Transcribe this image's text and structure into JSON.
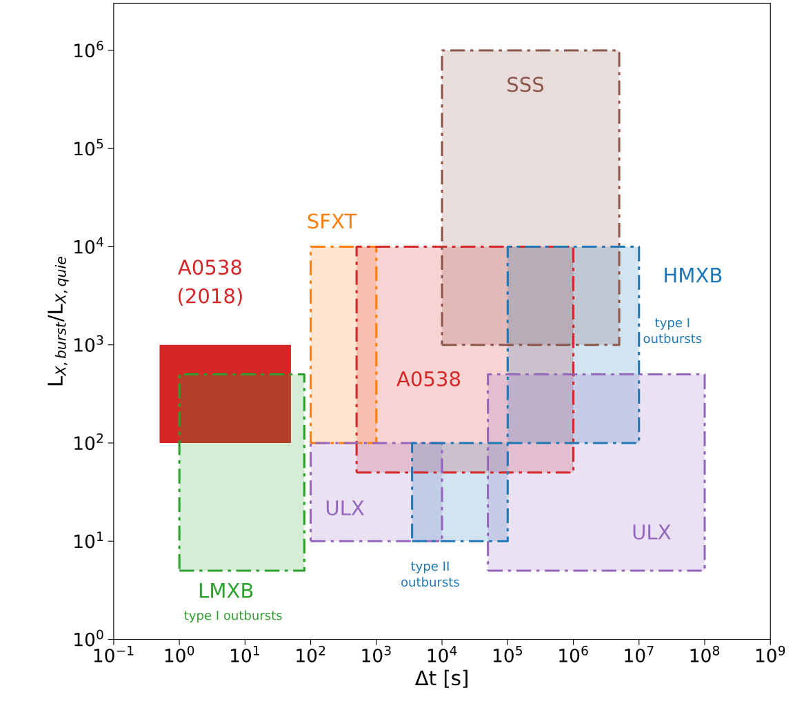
{
  "chart_data": {
    "type": "area",
    "xlabel": "Δt [s]",
    "ylabel": "L$_{X,burst}$/L$_{X,quie}$",
    "log": "xy",
    "grid": false,
    "legend": false,
    "xlim": [
      0.1,
      1000000000
    ],
    "ylim": [
      1,
      3000000
    ],
    "xticks": [
      {
        "value": 0.1,
        "label": "10$^{−1}$"
      },
      {
        "value": 1,
        "label": "10$^{0}$"
      },
      {
        "value": 10,
        "label": "10$^{1}$"
      },
      {
        "value": 100,
        "label": "10$^{2}$"
      },
      {
        "value": 1000,
        "label": "10$^{3}$"
      },
      {
        "value": 10000,
        "label": "10$^{4}$"
      },
      {
        "value": 100000,
        "label": "10$^{5}$"
      },
      {
        "value": 1000000,
        "label": "10$^{6}$"
      },
      {
        "value": 10000000,
        "label": "10$^{7}$"
      },
      {
        "value": 100000000,
        "label": "10$^{8}$"
      },
      {
        "value": 1000000000,
        "label": "10$^{9}$"
      }
    ],
    "yticks": [
      {
        "value": 1,
        "label": "10$^{0}$"
      },
      {
        "value": 10,
        "label": "10$^{1}$"
      },
      {
        "value": 100,
        "label": "10$^{2}$"
      },
      {
        "value": 1000,
        "label": "10$^{3}$"
      },
      {
        "value": 10000,
        "label": "10$^{4}$"
      },
      {
        "value": 100000,
        "label": "10$^{5}$"
      },
      {
        "value": 1000000,
        "label": "10$^{6}$"
      }
    ],
    "series": [
      {
        "name": "A0538\n(2018)",
        "color": "#d62728",
        "line_style": "solid",
        "x": [
          0.5,
          50,
          50,
          0.5,
          0.5
        ],
        "values": [
          100,
          100,
          1000,
          1000,
          100
        ]
      },
      {
        "name": "LMXB",
        "color": "#2ca02c",
        "line_style": "dashed",
        "x": [
          1,
          80,
          80,
          1,
          1
        ],
        "values": [
          5,
          5,
          500,
          500,
          5
        ]
      },
      {
        "name": "SFXT",
        "color": "#ff7f0e",
        "line_style": "dashed",
        "x": [
          100,
          1000,
          1000,
          100,
          100
        ],
        "values": [
          100,
          100,
          10000,
          10000,
          100
        ]
      },
      {
        "name": "A0538",
        "color": "#d62728",
        "line_style": "dashed",
        "x": [
          500,
          1000000,
          1000000,
          500,
          500
        ],
        "values": [
          50,
          50,
          10000,
          10000,
          50
        ]
      },
      {
        "name": "SSS",
        "color": "#8c564b",
        "line_style": "dashed",
        "x": [
          10000,
          5000000,
          5000000,
          10000,
          10000
        ],
        "values": [
          1000,
          1000,
          1000000,
          1000000,
          1000
        ]
      },
      {
        "name": "HMXB",
        "color": "#1f77b4",
        "line_style": "dashed",
        "x": [
          100000,
          10000000,
          10000000,
          100000,
          100000
        ],
        "values": [
          100,
          100,
          10000,
          10000,
          100
        ]
      },
      {
        "name": "ULX",
        "color": "#9467bd",
        "line_style": "dashed",
        "x": [
          100,
          10000,
          10000,
          100,
          100
        ],
        "values": [
          10,
          10,
          100,
          100,
          10
        ]
      },
      {
        "name": "type II\noutbursts",
        "color": "#1f77b4",
        "line_style": "dashed",
        "x": [
          3500,
          100000,
          100000,
          3500,
          3500
        ],
        "values": [
          10,
          10,
          100,
          100,
          10
        ]
      },
      {
        "name": "ULX",
        "color": "#9467bd",
        "line_style": "dashed",
        "x": [
          50000,
          100000000,
          100000000,
          50000,
          50000
        ],
        "values": [
          5,
          5,
          500,
          500,
          5
        ]
      }
    ],
    "annotations": [
      "type I outbursts",
      "type I\noutbursts"
    ]
  }
}
